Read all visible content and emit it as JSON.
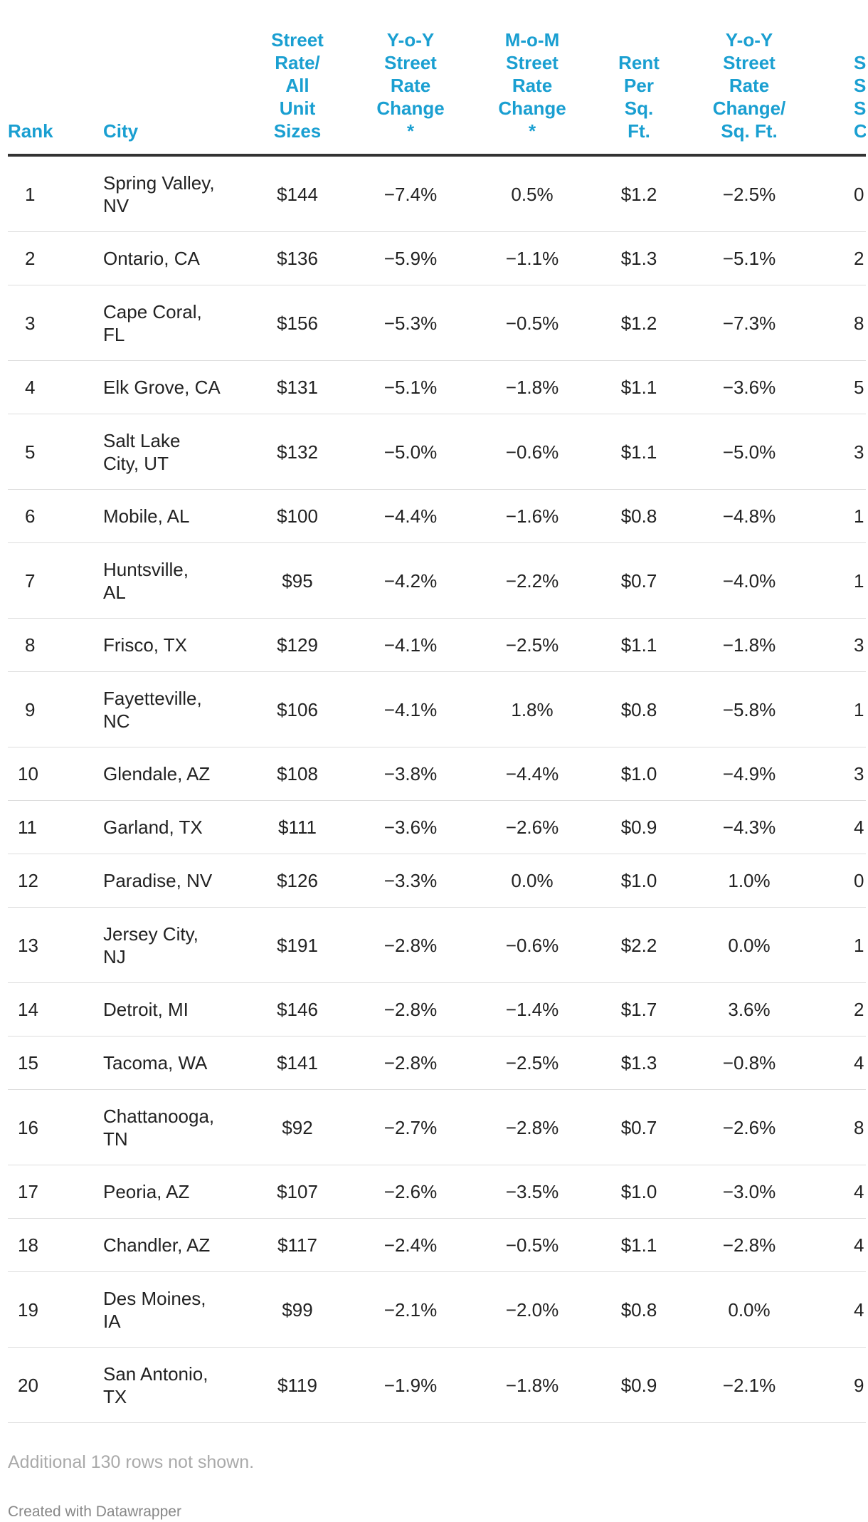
{
  "table": {
    "header": [
      "Rank",
      "City",
      "Street\nRate/\nAll\nUnit\nSizes",
      "Y-o-Y\nStreet\nRate\nChange\n*",
      "M-o-M\nStreet\nRate\nChange\n*",
      "Rent\nPer\nSq.\nFt.",
      "Y-o-Y\nStreet\nRate\nChange/\nSq. Ft.",
      "S\nSto\nSq\nCa"
    ],
    "rows": [
      [
        "1",
        "Spring Valley,\nNV",
        "$144",
        "−7.4%",
        "0.5%",
        "$1.2",
        "−2.5%",
        "0"
      ],
      [
        "2",
        "Ontario, CA",
        "$136",
        "−5.9%",
        "−1.1%",
        "$1.3",
        "−5.1%",
        "2"
      ],
      [
        "3",
        "Cape Coral,\nFL",
        "$156",
        "−5.3%",
        "−0.5%",
        "$1.2",
        "−7.3%",
        "8"
      ],
      [
        "4",
        "Elk Grove, CA",
        "$131",
        "−5.1%",
        "−1.8%",
        "$1.1",
        "−3.6%",
        "5"
      ],
      [
        "5",
        "Salt Lake\nCity, UT",
        "$132",
        "−5.0%",
        "−0.6%",
        "$1.1",
        "−5.0%",
        "3"
      ],
      [
        "6",
        "Mobile, AL",
        "$100",
        "−4.4%",
        "−1.6%",
        "$0.8",
        "−4.8%",
        "1"
      ],
      [
        "7",
        "Huntsville,\nAL",
        "$95",
        "−4.2%",
        "−2.2%",
        "$0.7",
        "−4.0%",
        "1"
      ],
      [
        "8",
        "Frisco, TX",
        "$129",
        "−4.1%",
        "−2.5%",
        "$1.1",
        "−1.8%",
        "3"
      ],
      [
        "9",
        "Fayetteville,\nNC",
        "$106",
        "−4.1%",
        "1.8%",
        "$0.8",
        "−5.8%",
        "1"
      ],
      [
        "10",
        "Glendale, AZ",
        "$108",
        "−3.8%",
        "−4.4%",
        "$1.0",
        "−4.9%",
        "3"
      ],
      [
        "11",
        "Garland, TX",
        "$111",
        "−3.6%",
        "−2.6%",
        "$0.9",
        "−4.3%",
        "4"
      ],
      [
        "12",
        "Paradise, NV",
        "$126",
        "−3.3%",
        "0.0%",
        "$1.0",
        "1.0%",
        "0"
      ],
      [
        "13",
        "Jersey City,\nNJ",
        "$191",
        "−2.8%",
        "−0.6%",
        "$2.2",
        "0.0%",
        "1"
      ],
      [
        "14",
        "Detroit, MI",
        "$146",
        "−2.8%",
        "−1.4%",
        "$1.7",
        "3.6%",
        "2"
      ],
      [
        "15",
        "Tacoma, WA",
        "$141",
        "−2.8%",
        "−2.5%",
        "$1.3",
        "−0.8%",
        "4"
      ],
      [
        "16",
        "Chattanooga,\nTN",
        "$92",
        "−2.7%",
        "−2.8%",
        "$0.7",
        "−2.6%",
        "8"
      ],
      [
        "17",
        "Peoria, AZ",
        "$107",
        "−2.6%",
        "−3.5%",
        "$1.0",
        "−3.0%",
        "4"
      ],
      [
        "18",
        "Chandler, AZ",
        "$117",
        "−2.4%",
        "−0.5%",
        "$1.1",
        "−2.8%",
        "4"
      ],
      [
        "19",
        "Des Moines,\nIA",
        "$99",
        "−2.1%",
        "−2.0%",
        "$0.8",
        "0.0%",
        "4"
      ],
      [
        "20",
        "San Antonio,\nTX",
        "$119",
        "−1.9%",
        "−1.8%",
        "$0.9",
        "−2.1%",
        "9"
      ]
    ]
  },
  "footer": {
    "note": "Additional 130 rows not shown.",
    "credit": "Created with Datawrapper"
  }
}
